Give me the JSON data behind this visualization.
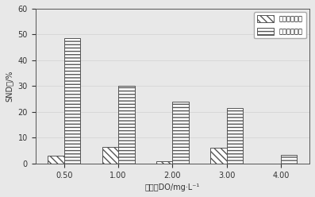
{
  "categories": [
    "0.50",
    "1.00",
    "2.00",
    "3.00",
    "4.00"
  ],
  "xlabel": "溶解氧DO/mg·L⁻¹",
  "ylabel": "SND率/%",
  "ylim": [
    0,
    60
  ],
  "yticks": [
    0,
    10,
    20,
    30,
    40,
    50,
    60
  ],
  "before_values": [
    3.0,
    6.5,
    0.8,
    6.0,
    0.0
  ],
  "after_values": [
    48.5,
    30.0,
    24.0,
    21.5,
    3.2
  ],
  "legend_before": "检加纤维素前",
  "legend_after": "检加纤维素后",
  "bar_width": 0.3,
  "plot_bg": "#e8e8e8",
  "fig_bg": "#e8e8e8"
}
